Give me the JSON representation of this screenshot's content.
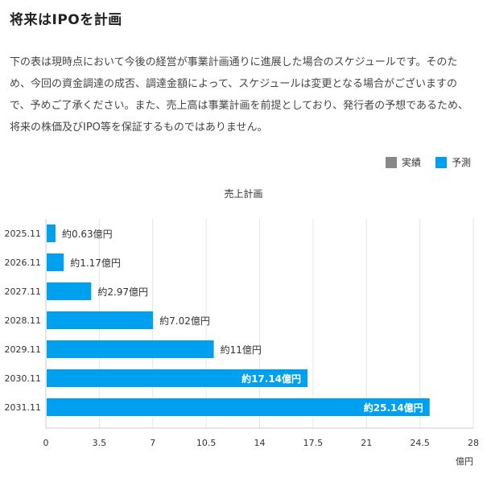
{
  "page": {
    "title": "将来はIPOを計画",
    "disclaimer": "下の表は現時点において今後の経営が事業計画通りに進展した場合のスケジュールです。そのため、今回の資金調達の成否、調達金額によって、スケジュールは変更となる場合がございますので、予めご了承ください。また、売上高は事業計画を前提としており、発行者の予想であるため、将来の株価及びIPO等を保証するものではありません。"
  },
  "legend": {
    "items": [
      {
        "label": "実績",
        "color": "#888888"
      },
      {
        "label": "予測",
        "color": "#00a0f0"
      }
    ]
  },
  "chart_data": {
    "type": "bar",
    "orientation": "horizontal",
    "title": "売上計画",
    "categories": [
      "2025.11",
      "2026.11",
      "2027.11",
      "2028.11",
      "2029.11",
      "2030.11",
      "2031.11"
    ],
    "series": [
      {
        "name": "予測",
        "color": "#00a0f0",
        "values": [
          0.63,
          1.17,
          2.97,
          7.02,
          11,
          17.14,
          25.14
        ],
        "labels": [
          "約0.63億円",
          "約1.17億円",
          "約2.97億円",
          "約7.02億円",
          "約11億円",
          "約17.14億円",
          "約25.14億円"
        ],
        "labels_inside": [
          false,
          false,
          false,
          false,
          false,
          true,
          true
        ]
      }
    ],
    "xlim": [
      0,
      28
    ],
    "xticks": [
      0,
      3.5,
      7,
      10.5,
      14,
      17.5,
      21,
      24.5,
      28
    ],
    "xunit": "億円",
    "grid": true
  }
}
